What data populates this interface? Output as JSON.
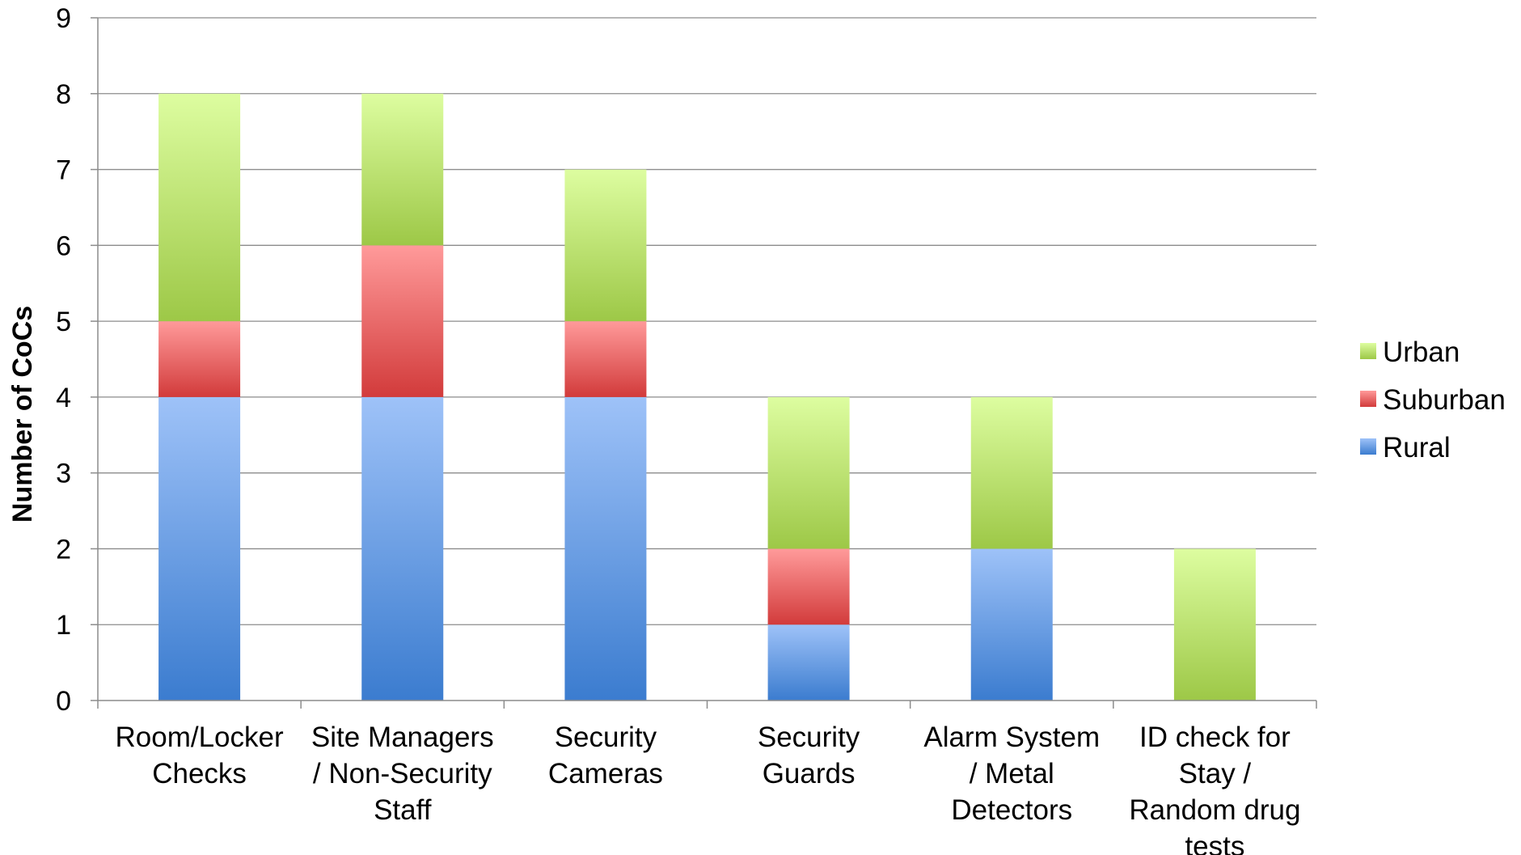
{
  "chart_data": {
    "type": "bar",
    "stacked": true,
    "title": "",
    "xlabel": "",
    "ylabel": "Number of CoCs",
    "ylim": [
      0,
      9
    ],
    "yticks": [
      0,
      1,
      2,
      3,
      4,
      5,
      6,
      7,
      8,
      9
    ],
    "grid": true,
    "legend_position": "right",
    "categories": [
      [
        "Room/Locker",
        "Checks"
      ],
      [
        "Site Managers",
        "/ Non-Security",
        "Staff"
      ],
      [
        "Security",
        "Cameras"
      ],
      [
        "Security",
        "Guards"
      ],
      [
        "Alarm System",
        "/ Metal",
        "Detectors"
      ],
      [
        "ID check for",
        "Stay /",
        "Random drug",
        "tests"
      ]
    ],
    "series": [
      {
        "name": "Rural",
        "values": [
          4,
          4,
          4,
          1,
          2,
          0
        ],
        "color_light": "#9ec2f8",
        "color_dark": "#3b7ccf"
      },
      {
        "name": "Suburban",
        "values": [
          1,
          2,
          1,
          1,
          0,
          0
        ],
        "color_light": "#ff9a9a",
        "color_dark": "#d23b3b"
      },
      {
        "name": "Urban",
        "values": [
          3,
          2,
          2,
          2,
          2,
          2
        ],
        "color_light": "#ddfda0",
        "color_dark": "#9dc847"
      }
    ]
  }
}
